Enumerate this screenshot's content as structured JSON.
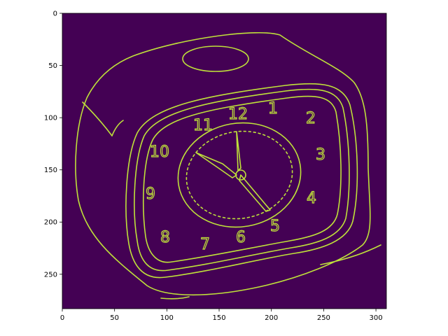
{
  "image": {
    "subject": "edge-detected alarm clock",
    "colormap": "viridis",
    "background_color": "#440154",
    "edge_color": "#bfe13a",
    "x_range": [
      0,
      310
    ],
    "y_range": [
      0,
      283
    ]
  },
  "axes": {
    "x_ticks": [
      {
        "value": 0,
        "label": "0"
      },
      {
        "value": 50,
        "label": "50"
      },
      {
        "value": 100,
        "label": "100"
      },
      {
        "value": 150,
        "label": "150"
      },
      {
        "value": 200,
        "label": "200"
      },
      {
        "value": 250,
        "label": "250"
      },
      {
        "value": 300,
        "label": "300"
      }
    ],
    "y_ticks": [
      {
        "value": 0,
        "label": "0"
      },
      {
        "value": 50,
        "label": "50"
      },
      {
        "value": 100,
        "label": "100"
      },
      {
        "value": 150,
        "label": "150"
      },
      {
        "value": 200,
        "label": "200"
      },
      {
        "value": 250,
        "label": "250"
      }
    ]
  }
}
